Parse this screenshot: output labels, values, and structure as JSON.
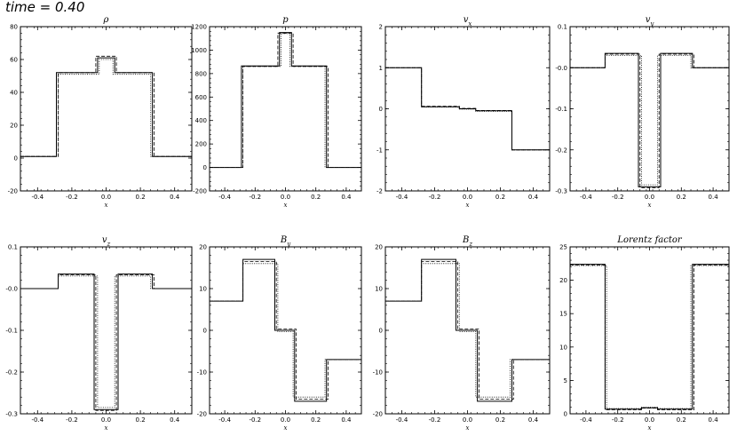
{
  "time_label": "time =  0.40",
  "chart_data": [
    {
      "type": "line",
      "title": "ρ",
      "xlabel": "x",
      "xlim": [
        -0.5,
        0.5
      ],
      "ylim": [
        -20,
        80
      ],
      "xticks": [
        -0.4,
        -0.2,
        0.0,
        0.2,
        0.4
      ],
      "xtick_labels": [
        "-0.4",
        "-0.2",
        "0.0",
        "0.2",
        "0.4"
      ],
      "yticks": [
        -20,
        0,
        20,
        40,
        60,
        80
      ],
      "ytick_labels": [
        "-20",
        "0",
        "20",
        "40",
        "60",
        "80"
      ],
      "series": [
        {
          "style": "solid",
          "x": [
            -0.5,
            -0.29,
            -0.29,
            -0.05,
            -0.05,
            0.05,
            0.05,
            0.27,
            0.27,
            0.5
          ],
          "y": [
            1,
            1,
            52,
            52,
            61,
            61,
            52,
            52,
            1,
            1
          ]
        },
        {
          "style": "dashed",
          "x": [
            -0.5,
            -0.28,
            -0.28,
            -0.06,
            -0.06,
            0.06,
            0.06,
            0.28,
            0.28,
            0.5
          ],
          "y": [
            1,
            1,
            52,
            52,
            62,
            62,
            52,
            52,
            1,
            1
          ]
        },
        {
          "style": "dotted",
          "x": [
            -0.5,
            -0.28,
            -0.28,
            -0.04,
            -0.04,
            0.04,
            0.04,
            0.26,
            0.26,
            0.5
          ],
          "y": [
            1,
            1,
            51,
            51,
            60,
            60,
            51,
            51,
            1,
            1
          ]
        }
      ]
    },
    {
      "type": "line",
      "title": "p",
      "xlabel": "x",
      "xlim": [
        -0.5,
        0.5
      ],
      "ylim": [
        -200,
        1200
      ],
      "xticks": [
        -0.4,
        -0.2,
        0.0,
        0.2,
        0.4
      ],
      "xtick_labels": [
        "-0.4",
        "-0.2",
        "0.0",
        "0.2",
        "0.4"
      ],
      "yticks": [
        -200,
        0,
        200,
        400,
        600,
        800,
        1000,
        1200
      ],
      "ytick_labels": [
        "-200",
        "0",
        "200",
        "400",
        "600",
        "800",
        "1000",
        "1200"
      ],
      "series": [
        {
          "style": "solid",
          "x": [
            -0.5,
            -0.29,
            -0.29,
            -0.04,
            -0.04,
            0.04,
            0.04,
            0.27,
            0.27,
            0.5
          ],
          "y": [
            0,
            0,
            865,
            865,
            1150,
            1150,
            865,
            865,
            0,
            0
          ]
        },
        {
          "style": "dashed",
          "x": [
            -0.5,
            -0.28,
            -0.28,
            -0.05,
            -0.05,
            0.05,
            0.05,
            0.28,
            0.28,
            0.5
          ],
          "y": [
            0,
            0,
            860,
            860,
            1145,
            1145,
            860,
            860,
            0,
            0
          ]
        },
        {
          "style": "dotted",
          "x": [
            -0.5,
            -0.28,
            -0.28,
            -0.03,
            -0.03,
            0.03,
            0.03,
            0.26,
            0.26,
            0.5
          ],
          "y": [
            0,
            0,
            860,
            860,
            1140,
            1140,
            860,
            860,
            0,
            0
          ]
        }
      ]
    },
    {
      "type": "line",
      "title": "vx",
      "xlabel": "x",
      "xlim": [
        -0.5,
        0.5
      ],
      "ylim": [
        -2,
        2
      ],
      "xticks": [
        -0.4,
        -0.2,
        0.0,
        0.2,
        0.4
      ],
      "xtick_labels": [
        "-0.4",
        "-0.2",
        "0.0",
        "0.2",
        "0.4"
      ],
      "yticks": [
        -2,
        -1,
        0,
        1,
        2
      ],
      "ytick_labels": [
        "-2",
        "-1",
        "0",
        "1",
        "2"
      ],
      "series": [
        {
          "style": "solid",
          "x": [
            -0.5,
            -0.28,
            -0.28,
            -0.05,
            -0.05,
            0.05,
            0.05,
            0.27,
            0.27,
            0.5
          ],
          "y": [
            1,
            1,
            0.05,
            0.05,
            0.0,
            0.0,
            -0.05,
            -0.05,
            -1,
            -1
          ]
        },
        {
          "style": "dashed",
          "x": [
            -0.5,
            -0.28,
            -0.28,
            -0.05,
            -0.05,
            0.05,
            0.05,
            0.27,
            0.27,
            0.5
          ],
          "y": [
            1,
            1,
            0.06,
            0.06,
            0.01,
            0.01,
            -0.04,
            -0.04,
            -1,
            -1
          ]
        },
        {
          "style": "dotted",
          "x": [
            -0.5,
            -0.28,
            -0.28,
            -0.05,
            -0.05,
            0.05,
            0.05,
            0.27,
            0.27,
            0.5
          ],
          "y": [
            1,
            1,
            0.04,
            0.04,
            -0.01,
            -0.01,
            -0.06,
            -0.06,
            -1,
            -1
          ]
        }
      ]
    },
    {
      "type": "line",
      "title": "vy",
      "xlabel": "x",
      "xlim": [
        -0.5,
        0.5
      ],
      "ylim": [
        -0.3,
        0.1
      ],
      "xticks": [
        -0.4,
        -0.2,
        0.0,
        0.2,
        0.4
      ],
      "xtick_labels": [
        "-0.4",
        "-0.2",
        "0.0",
        "0.2",
        "0.4"
      ],
      "yticks": [
        -0.3,
        -0.2,
        -0.1,
        0.0,
        0.1
      ],
      "ytick_labels": [
        "-0.3",
        "-0.2",
        "-0.1",
        "-0.0",
        "0.1"
      ],
      "series": [
        {
          "style": "solid",
          "x": [
            -0.5,
            -0.28,
            -0.28,
            -0.07,
            -0.07,
            0.07,
            0.07,
            0.27,
            0.27,
            0.5
          ],
          "y": [
            0,
            0,
            0.035,
            0.035,
            -0.29,
            -0.29,
            0.035,
            0.035,
            0,
            0
          ]
        },
        {
          "style": "dashed",
          "x": [
            -0.5,
            -0.28,
            -0.28,
            -0.06,
            -0.06,
            0.06,
            0.06,
            0.28,
            0.28,
            0.5
          ],
          "y": [
            0,
            0,
            0.033,
            0.033,
            -0.292,
            -0.292,
            0.033,
            0.033,
            0,
            0
          ]
        },
        {
          "style": "dotted",
          "x": [
            -0.5,
            -0.28,
            -0.28,
            -0.05,
            -0.05,
            0.05,
            0.05,
            0.26,
            0.26,
            0.5
          ],
          "y": [
            0,
            0,
            0.03,
            0.03,
            -0.285,
            -0.285,
            0.03,
            0.03,
            0,
            0
          ]
        }
      ]
    },
    {
      "type": "line",
      "title": "vz",
      "xlabel": "x",
      "xlim": [
        -0.5,
        0.5
      ],
      "ylim": [
        -0.3,
        0.1
      ],
      "xticks": [
        -0.4,
        -0.2,
        0.0,
        0.2,
        0.4
      ],
      "xtick_labels": [
        "-0.4",
        "-0.2",
        "0.0",
        "0.2",
        "0.4"
      ],
      "yticks": [
        -0.3,
        -0.2,
        -0.1,
        0.0,
        0.1
      ],
      "ytick_labels": [
        "-0.3",
        "-0.2",
        "-0.1",
        "-0.0",
        "0.1"
      ],
      "series": [
        {
          "style": "solid",
          "x": [
            -0.5,
            -0.28,
            -0.28,
            -0.07,
            -0.07,
            0.07,
            0.07,
            0.27,
            0.27,
            0.5
          ],
          "y": [
            0,
            0,
            0.035,
            0.035,
            -0.29,
            -0.29,
            0.035,
            0.035,
            0,
            0
          ]
        },
        {
          "style": "dashed",
          "x": [
            -0.5,
            -0.28,
            -0.28,
            -0.06,
            -0.06,
            0.06,
            0.06,
            0.28,
            0.28,
            0.5
          ],
          "y": [
            0,
            0,
            0.033,
            0.033,
            -0.292,
            -0.292,
            0.033,
            0.033,
            0,
            0
          ]
        },
        {
          "style": "dotted",
          "x": [
            -0.5,
            -0.28,
            -0.28,
            -0.05,
            -0.05,
            0.05,
            0.05,
            0.26,
            0.26,
            0.5
          ],
          "y": [
            0,
            0,
            0.03,
            0.03,
            -0.285,
            -0.285,
            0.03,
            0.03,
            0,
            0
          ]
        }
      ]
    },
    {
      "type": "line",
      "title": "By",
      "xlabel": "x",
      "xlim": [
        -0.5,
        0.5
      ],
      "ylim": [
        -20,
        20
      ],
      "xticks": [
        -0.4,
        -0.2,
        0.0,
        0.2,
        0.4
      ],
      "xtick_labels": [
        "-0.4",
        "-0.2",
        "0.0",
        "0.2",
        "0.4"
      ],
      "yticks": [
        -20,
        -10,
        0,
        10,
        20
      ],
      "ytick_labels": [
        "-20",
        "-10",
        "0",
        "10",
        "20"
      ],
      "series": [
        {
          "style": "solid",
          "x": [
            -0.5,
            -0.28,
            -0.28,
            -0.07,
            -0.07,
            0.06,
            0.06,
            0.27,
            0.27,
            0.5
          ],
          "y": [
            7,
            7,
            17,
            17,
            0,
            0,
            -17,
            -17,
            -7,
            -7
          ]
        },
        {
          "style": "dashed",
          "x": [
            -0.5,
            -0.28,
            -0.28,
            -0.06,
            -0.06,
            0.07,
            0.07,
            0.28,
            0.28,
            0.5
          ],
          "y": [
            7,
            7,
            16.5,
            16.5,
            0.3,
            0.3,
            -16.5,
            -16.5,
            -7,
            -7
          ]
        },
        {
          "style": "dotted",
          "x": [
            -0.5,
            -0.28,
            -0.28,
            -0.05,
            -0.05,
            0.05,
            0.05,
            0.26,
            0.26,
            0.5
          ],
          "y": [
            7,
            7,
            16,
            16,
            -0.3,
            -0.3,
            -16,
            -16,
            -7,
            -7
          ]
        }
      ]
    },
    {
      "type": "line",
      "title": "Bz",
      "xlabel": "x",
      "xlim": [
        -0.5,
        0.5
      ],
      "ylim": [
        -20,
        20
      ],
      "xticks": [
        -0.4,
        -0.2,
        0.0,
        0.2,
        0.4
      ],
      "xtick_labels": [
        "-0.4",
        "-0.2",
        "0.0",
        "0.2",
        "0.4"
      ],
      "yticks": [
        -20,
        -10,
        0,
        10,
        20
      ],
      "ytick_labels": [
        "-20",
        "-10",
        "0",
        "10",
        "20"
      ],
      "series": [
        {
          "style": "solid",
          "x": [
            -0.5,
            -0.28,
            -0.28,
            -0.07,
            -0.07,
            0.06,
            0.06,
            0.27,
            0.27,
            0.5
          ],
          "y": [
            7,
            7,
            17,
            17,
            0,
            0,
            -17,
            -17,
            -7,
            -7
          ]
        },
        {
          "style": "dashed",
          "x": [
            -0.5,
            -0.28,
            -0.28,
            -0.06,
            -0.06,
            0.07,
            0.07,
            0.28,
            0.28,
            0.5
          ],
          "y": [
            7,
            7,
            16.5,
            16.5,
            0.3,
            0.3,
            -16.5,
            -16.5,
            -7,
            -7
          ]
        },
        {
          "style": "dotted",
          "x": [
            -0.5,
            -0.28,
            -0.28,
            -0.05,
            -0.05,
            0.05,
            0.05,
            0.26,
            0.26,
            0.5
          ],
          "y": [
            7,
            7,
            16,
            16,
            -0.3,
            -0.3,
            -16,
            -16,
            -7,
            -7
          ]
        }
      ]
    },
    {
      "type": "line",
      "title": "Lorentz factor",
      "xlabel": "x",
      "xlim": [
        -0.5,
        0.5
      ],
      "ylim": [
        0,
        25
      ],
      "xticks": [
        -0.4,
        -0.2,
        0.0,
        0.2,
        0.4
      ],
      "xtick_labels": [
        "-0.4",
        "-0.2",
        "0.0",
        "0.2",
        "0.4"
      ],
      "yticks": [
        0,
        5,
        10,
        15,
        20,
        25
      ],
      "ytick_labels": [
        "0",
        "5",
        "10",
        "15",
        "20",
        "25"
      ],
      "series": [
        {
          "style": "solid",
          "x": [
            -0.5,
            -0.28,
            -0.28,
            -0.05,
            -0.05,
            0.05,
            0.05,
            0.27,
            0.27,
            0.5
          ],
          "y": [
            22.4,
            22.4,
            0.7,
            0.7,
            0.9,
            0.9,
            0.7,
            0.7,
            22.4,
            22.4
          ]
        },
        {
          "style": "dashed",
          "x": [
            -0.5,
            -0.28,
            -0.28,
            -0.05,
            -0.05,
            0.05,
            0.05,
            0.28,
            0.28,
            0.5
          ],
          "y": [
            22.3,
            22.3,
            0.6,
            0.6,
            0.85,
            0.85,
            0.6,
            0.6,
            22.3,
            22.3
          ]
        },
        {
          "style": "dotted",
          "x": [
            -0.5,
            -0.27,
            -0.27,
            -0.05,
            -0.05,
            0.05,
            0.05,
            0.26,
            0.26,
            0.5
          ],
          "y": [
            22.2,
            22.2,
            0.8,
            0.8,
            1.0,
            1.0,
            0.8,
            0.8,
            22.2,
            22.2
          ]
        }
      ]
    }
  ]
}
